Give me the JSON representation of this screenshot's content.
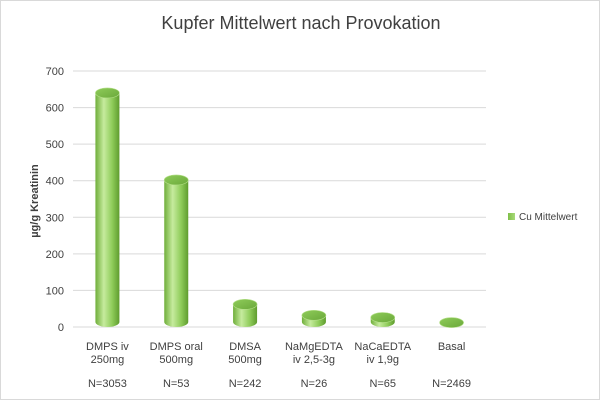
{
  "chart_data": {
    "type": "bar",
    "title": "Kupfer Mittelwert nach Provokation",
    "ylabel": "µg/g Kreatinin",
    "xlabel": "",
    "ylim": [
      0,
      700
    ],
    "yticks": [
      0,
      100,
      200,
      300,
      400,
      500,
      600,
      700
    ],
    "grid": true,
    "legend_position": "right",
    "categories": [
      {
        "line1": "DMPS iv",
        "line2": "250mg",
        "n": "N=3053"
      },
      {
        "line1": "DMPS oral",
        "line2": "500mg",
        "n": "N=53"
      },
      {
        "line1": "DMSA",
        "line2": "500mg",
        "n": "N=242"
      },
      {
        "line1": "NaMgEDTA",
        "line2": "iv 2,5-3g",
        "n": "N=26"
      },
      {
        "line1": "NaCaEDTA",
        "line2": "iv 1,9g",
        "n": "N=65"
      },
      {
        "line1": "Basal",
        "line2": "",
        "n": "N=2469"
      }
    ],
    "series": [
      {
        "name": "Cu Mittelwert",
        "values": [
          640,
          402,
          62,
          32,
          26,
          12
        ],
        "color": "#8fcc5a"
      }
    ]
  }
}
